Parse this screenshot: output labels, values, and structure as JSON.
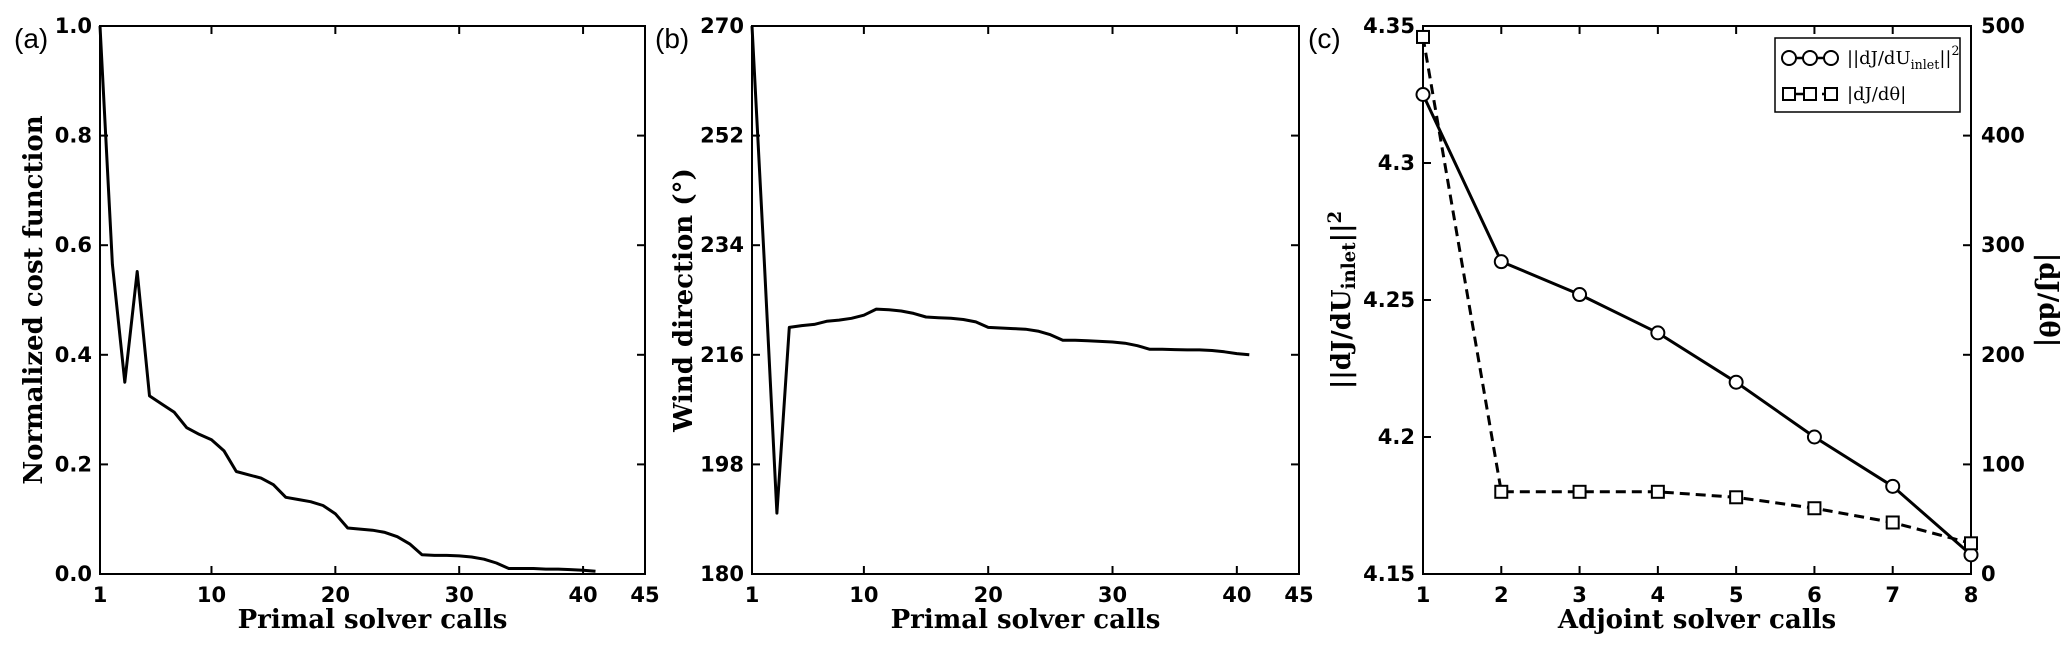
{
  "panel_labels": [
    "(a)",
    "(b)",
    "(c)"
  ],
  "chart_data": [
    {
      "type": "line",
      "panel": "(a)",
      "xlabel": "Primal solver calls",
      "ylabel": "Normalized cost function",
      "xlim": [
        1,
        45
      ],
      "ylim": [
        0,
        1.0
      ],
      "xticks": [
        1,
        10,
        20,
        30,
        40,
        45
      ],
      "xtick_labels": [
        "1",
        "10",
        "20",
        "30",
        "40",
        "45"
      ],
      "yticks": [
        0,
        0.2,
        0.4,
        0.6,
        0.8,
        1.0
      ],
      "ytick_labels": [
        "0.0",
        "0.2",
        "0.4",
        "0.6",
        "0.8",
        "1.0"
      ],
      "series": [
        {
          "style": "solid",
          "x": [
            1,
            2,
            3,
            4,
            5,
            6,
            7,
            8,
            9,
            10,
            11,
            12,
            13,
            14,
            15,
            16,
            17,
            18,
            19,
            20,
            21,
            22,
            23,
            24,
            25,
            26,
            27,
            28,
            29,
            30,
            31,
            32,
            33,
            34,
            35,
            36,
            37,
            38,
            39,
            40,
            41
          ],
          "y": [
            1.0,
            0.565,
            0.35,
            0.552,
            0.325,
            0.31,
            0.295,
            0.267,
            0.255,
            0.245,
            0.225,
            0.187,
            0.181,
            0.175,
            0.163,
            0.14,
            0.136,
            0.132,
            0.125,
            0.11,
            0.084,
            0.082,
            0.08,
            0.076,
            0.068,
            0.055,
            0.035,
            0.034,
            0.034,
            0.033,
            0.031,
            0.027,
            0.02,
            0.01,
            0.01,
            0.01,
            0.009,
            0.009,
            0.008,
            0.007,
            0.005
          ]
        }
      ]
    },
    {
      "type": "line",
      "panel": "(b)",
      "xlabel": "Primal solver calls",
      "ylabel": "Wind direction (°)",
      "xlim": [
        1,
        45
      ],
      "ylim": [
        180,
        270
      ],
      "xticks": [
        1,
        10,
        20,
        30,
        40,
        45
      ],
      "xtick_labels": [
        "1",
        "10",
        "20",
        "30",
        "40",
        "45"
      ],
      "yticks": [
        180,
        198,
        216,
        234,
        252,
        270
      ],
      "ytick_labels": [
        "180",
        "198",
        "216",
        "234",
        "252",
        "270"
      ],
      "series": [
        {
          "style": "solid",
          "x": [
            1,
            2,
            3,
            4,
            5,
            6,
            7,
            8,
            9,
            10,
            11,
            12,
            13,
            14,
            15,
            16,
            17,
            18,
            19,
            20,
            21,
            22,
            23,
            24,
            25,
            26,
            27,
            28,
            29,
            30,
            31,
            32,
            33,
            34,
            35,
            36,
            37,
            38,
            39,
            40,
            41
          ],
          "y": [
            270,
            231,
            190,
            220.5,
            220.8,
            221,
            221.5,
            221.7,
            222,
            222.5,
            223.5,
            223.4,
            223.2,
            222.8,
            222.2,
            222.1,
            222,
            221.8,
            221.4,
            220.5,
            220.4,
            220.3,
            220.2,
            219.9,
            219.3,
            218.4,
            218.4,
            218.3,
            218.2,
            218.1,
            217.9,
            217.5,
            216.9,
            216.9,
            216.85,
            216.8,
            216.8,
            216.7,
            216.5,
            216.2,
            216.0
          ]
        }
      ]
    },
    {
      "type": "line",
      "panel": "(c)",
      "xlabel": "Adjoint solver calls",
      "ylabel": "||dJ/dU_inlet||^2",
      "y2label": "|dJ/dθ|",
      "xlim": [
        1,
        8
      ],
      "ylim": [
        4.15,
        4.35
      ],
      "y2lim": [
        0,
        500
      ],
      "xticks": [
        1,
        2,
        3,
        4,
        5,
        6,
        7,
        8
      ],
      "xtick_labels": [
        "1",
        "2",
        "3",
        "4",
        "5",
        "6",
        "7",
        "8"
      ],
      "yticks": [
        4.15,
        4.2,
        4.25,
        4.3,
        4.35
      ],
      "ytick_labels": [
        "4.15",
        "4.2",
        "4.25",
        "4.3",
        "4.35"
      ],
      "y2ticks": [
        0,
        100,
        200,
        300,
        400,
        500
      ],
      "y2tick_labels": [
        "0",
        "100",
        "200",
        "300",
        "400",
        "500"
      ],
      "legend_position": "top-right",
      "series": [
        {
          "name": "||dJ/dU_inlet||^2",
          "style": "solid",
          "marker": "circle",
          "axis": "left",
          "x": [
            1,
            2,
            3,
            4,
            5,
            6,
            7,
            8
          ],
          "y": [
            4.325,
            4.264,
            4.252,
            4.238,
            4.22,
            4.2,
            4.182,
            4.157
          ]
        },
        {
          "name": "|dJ/dθ|",
          "style": "dashed",
          "marker": "square",
          "axis": "right",
          "x": [
            1,
            2,
            3,
            4,
            5,
            6,
            7,
            8
          ],
          "y": [
            490,
            75,
            75,
            75,
            70,
            60,
            47,
            28
          ]
        }
      ]
    }
  ]
}
